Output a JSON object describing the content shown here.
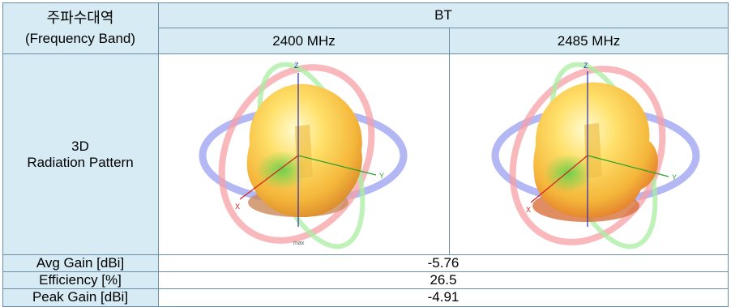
{
  "header": {
    "band_label_ko": "주파수대역",
    "band_label_en": "(Frequency Band)",
    "group": "BT",
    "freq_1": "2400 MHz",
    "freq_2": "2485 MHz"
  },
  "pattern_row": {
    "label_line1": "3D",
    "label_line2": "Radiation Pattern",
    "axis_z": "Z",
    "axis_y": "Y",
    "axis_x": "X",
    "max_tag": "max"
  },
  "metrics": [
    {
      "label": "Avg Gain [dBi]",
      "value": "-5.76"
    },
    {
      "label": "Efficiency [%]",
      "value": "26.5"
    },
    {
      "label": "Peak Gain [dBi]",
      "value": "-4.91"
    }
  ]
}
